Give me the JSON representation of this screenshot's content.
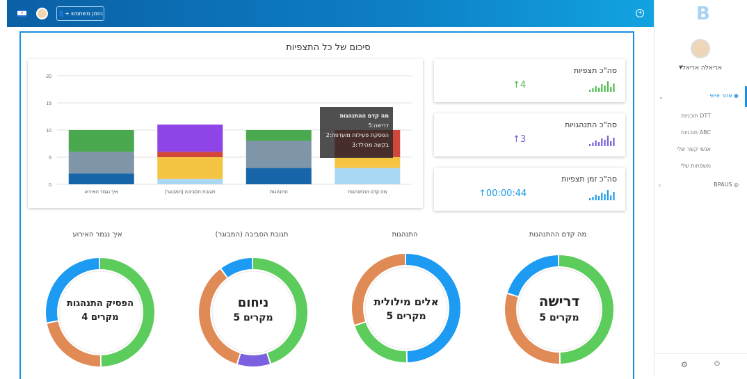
{
  "topbar": {
    "invite_label": "הזמן משתמש",
    "flag_icon": "israel-flag-icon",
    "logout_icon": "logout-icon"
  },
  "summary": {
    "title": "סיכום של כל התצפיות"
  },
  "stats": [
    {
      "label": "סה\"כ תצפיות",
      "value": "4",
      "color": "#4cbb4c"
    },
    {
      "label": "סה\"כ התנהגויות",
      "value": "3",
      "color": "#7b5fd9"
    },
    {
      "label": "סה\"כ זמן תצפיות",
      "value": "00:00:44",
      "color": "#1b9be6"
    }
  ],
  "chart_data": {
    "type": "bar",
    "stacked": true,
    "categories": [
      "איך נגמר האירוע",
      "תגובת הסביבה (המבוגר)",
      "התנהגות",
      "מה קדם ההתנהגות"
    ],
    "ylim": [
      0,
      20
    ],
    "yticks": [
      "0",
      "5",
      "10",
      "15",
      "20"
    ],
    "grid": true,
    "series_colors": [
      "#1565a8",
      "#7f95a8",
      "#f5c443",
      "#d2473b",
      "#8e44e6",
      "#4aa84f",
      "#a9d8f5"
    ],
    "stacks": [
      [
        {
          "v": 2,
          "c": 0
        },
        {
          "v": 4,
          "c": 1
        },
        {
          "v": 4,
          "c": 5
        }
      ],
      [
        {
          "v": 1,
          "c": 6
        },
        {
          "v": 4,
          "c": 2
        },
        {
          "v": 1,
          "c": 3
        },
        {
          "v": 5,
          "c": 4
        }
      ],
      [
        {
          "v": 3,
          "c": 0
        },
        {
          "v": 5,
          "c": 1
        },
        {
          "v": 2,
          "c": 5
        }
      ],
      [
        {
          "v": 3,
          "c": 6
        },
        {
          "v": 2,
          "c": 2
        },
        {
          "v": 5,
          "c": 3
        }
      ]
    ],
    "tooltip": {
      "title": "מה קדם ההתנהגות",
      "lines": [
        "דרישה:5",
        "הפסקת פעילות מועדפת:2",
        "בקשה מהילד:3"
      ]
    }
  },
  "donuts": [
    {
      "title": "איך נגמר האירוע",
      "main": "הפסיק התנהגות",
      "sub": "4 מקרים",
      "segments": [
        {
          "value": 50,
          "color": "#5ccc5c"
        },
        {
          "value": 22,
          "color": "#e08a55"
        },
        {
          "value": 28,
          "color": "#1d9af2"
        }
      ]
    },
    {
      "title": "תגובת הסביבה (המבוגר)",
      "main": "ניחום",
      "sub": "5 מקרים",
      "segments": [
        {
          "value": 45,
          "color": "#5ccc5c"
        },
        {
          "value": 10,
          "color": "#7b61e0"
        },
        {
          "value": 35,
          "color": "#e08a55"
        },
        {
          "value": 10,
          "color": "#1d9af2"
        }
      ]
    },
    {
      "title": "התנהגות",
      "main": "אלים מילולית",
      "sub": "5 מקרים",
      "segments": [
        {
          "value": 50,
          "color": "#1d9af2"
        },
        {
          "value": 20,
          "color": "#5ccc5c"
        },
        {
          "value": 30,
          "color": "#e08a55"
        }
      ]
    },
    {
      "title": "מה קדם ההתנהגות",
      "main": "דרישה",
      "sub": "5 מקרים",
      "segments": [
        {
          "value": 50,
          "color": "#5ccc5c"
        },
        {
          "value": 30,
          "color": "#e08a55"
        },
        {
          "value": 20,
          "color": "#1d9af2"
        }
      ]
    }
  ],
  "sidebar": {
    "user_name": "אריאלה אריאלי",
    "personal_area": "אזור אישי",
    "sub_items": [
      "תוכניות DTT",
      "תוכניות ABC",
      "אנשי קשר שלי",
      "משפחות שלי"
    ],
    "bpaus": "BPAUS"
  }
}
